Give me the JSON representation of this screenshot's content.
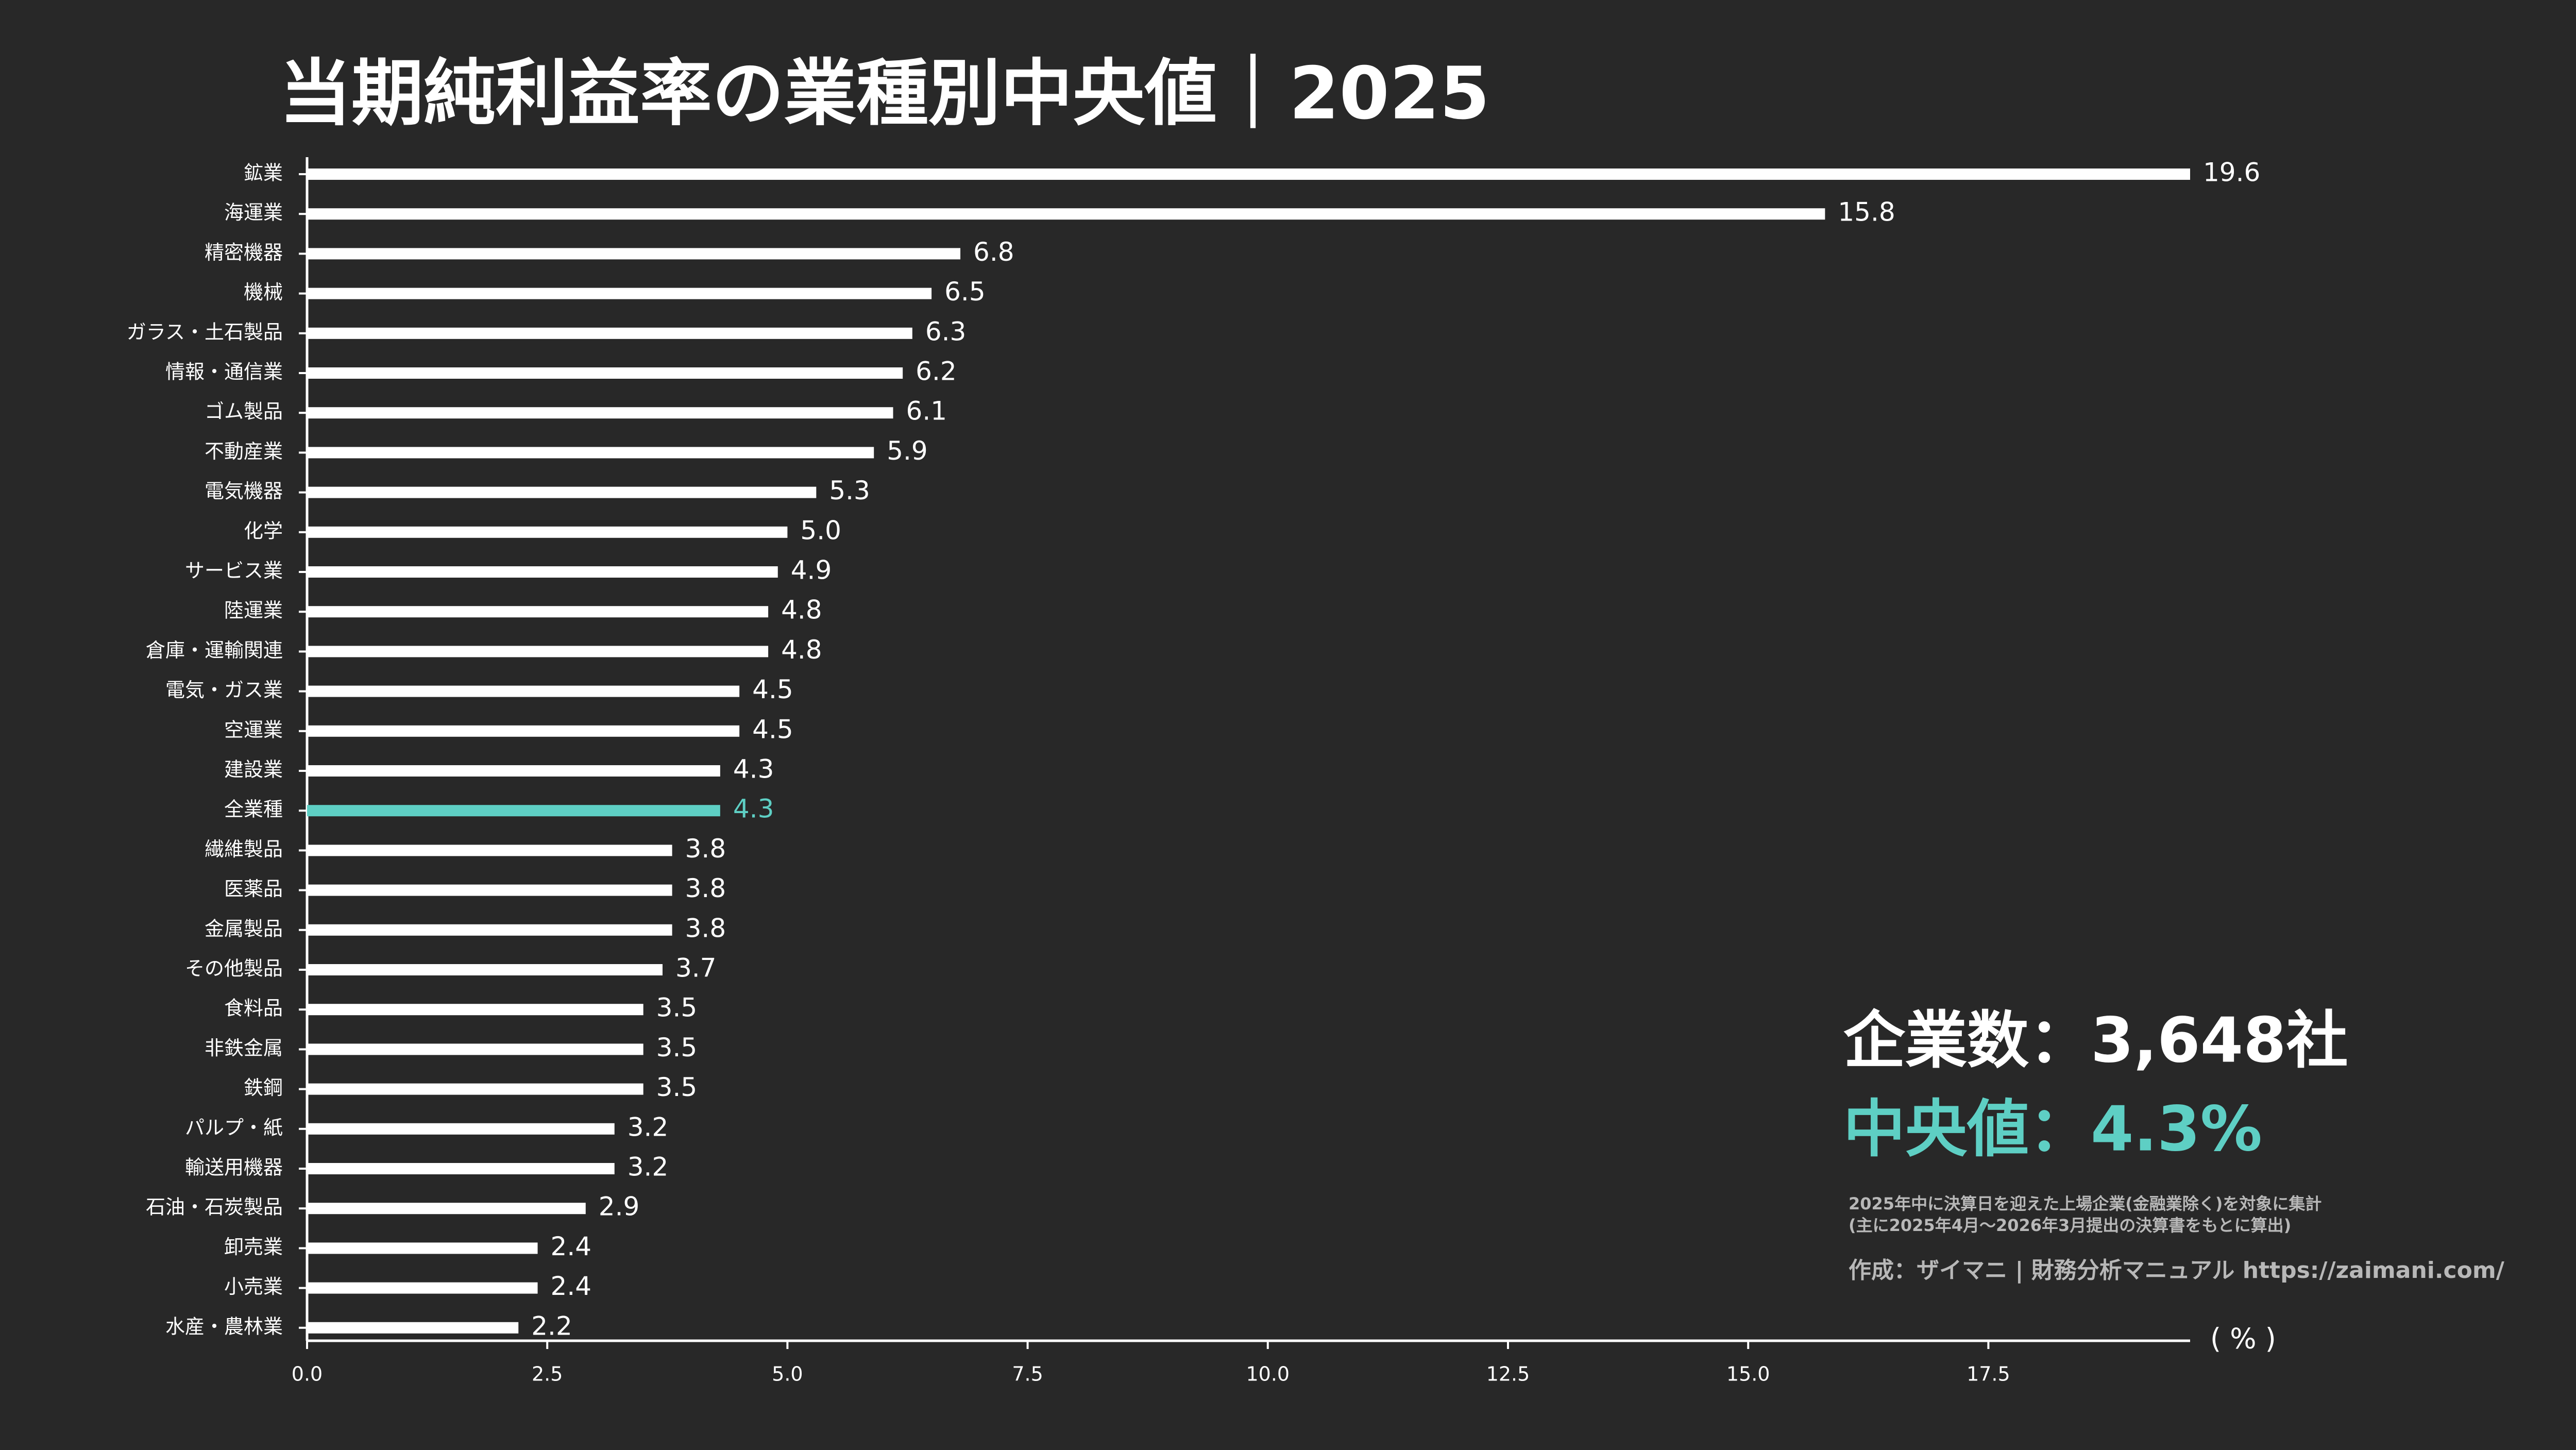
{
  "chart_data": {
    "type": "bar",
    "orientation": "horizontal",
    "title": "当期純利益率の業種別中央値｜2025",
    "categories": [
      "鉱業",
      "海運業",
      "精密機器",
      "機械",
      "ガラス・土石製品",
      "情報・通信業",
      "ゴム製品",
      "不動産業",
      "電気機器",
      "化学",
      "サービス業",
      "陸運業",
      "倉庫・運輸関連",
      "電気・ガス業",
      "空運業",
      "建設業",
      "全業種",
      "繊維製品",
      "医薬品",
      "金属製品",
      "その他製品",
      "食料品",
      "非鉄金属",
      "鉄鋼",
      "パルプ・紙",
      "輸送用機器",
      "石油・石炭製品",
      "卸売業",
      "小売業",
      "水産・農林業"
    ],
    "values": [
      19.6,
      15.8,
      6.8,
      6.5,
      6.3,
      6.2,
      6.1,
      5.9,
      5.3,
      5.0,
      4.9,
      4.8,
      4.8,
      4.5,
      4.5,
      4.3,
      4.3,
      3.8,
      3.8,
      3.8,
      3.7,
      3.5,
      3.5,
      3.5,
      3.2,
      3.2,
      2.9,
      2.4,
      2.4,
      2.2
    ],
    "value_labels": [
      "19.6",
      "15.8",
      "6.8",
      "6.5",
      "6.3",
      "6.2",
      "6.1",
      "5.9",
      "5.3",
      "5.0",
      "4.9",
      "4.8",
      "4.8",
      "4.5",
      "4.5",
      "4.3",
      "4.3",
      "3.8",
      "3.8",
      "3.8",
      "3.7",
      "3.5",
      "3.5",
      "3.5",
      "3.2",
      "3.2",
      "2.9",
      "2.4",
      "2.4",
      "2.2"
    ],
    "colors": [
      "#ffffff",
      "#ffffff",
      "#ffffff",
      "#ffffff",
      "#ffffff",
      "#ffffff",
      "#ffffff",
      "#ffffff",
      "#ffffff",
      "#ffffff",
      "#ffffff",
      "#ffffff",
      "#ffffff",
      "#ffffff",
      "#ffffff",
      "#ffffff",
      "#5ecfc4",
      "#ffffff",
      "#ffffff",
      "#ffffff",
      "#ffffff",
      "#ffffff",
      "#ffffff",
      "#ffffff",
      "#ffffff",
      "#ffffff",
      "#ffffff",
      "#ffffff",
      "#ffffff",
      "#ffffff"
    ],
    "xlim": [
      0,
      19.6
    ],
    "xticks": [
      {
        "value": 0,
        "label": "0.0"
      },
      2.5,
      {
        "value": 5,
        "label": "5.0"
      },
      7.5,
      {
        "value": 10,
        "label": "10.0"
      },
      12.5,
      {
        "value": 15,
        "label": "15.0"
      },
      17.5
    ],
    "x_label": "( % )",
    "grid": false,
    "annotations": [
      "企業数：3,648社",
      "中央値：4.3%",
      "2025年中に決算日を迎えた上場企業(金融業除く)を対象に集計",
      "(主に2025年4月〜2026年3月提出の決算書をもとに算出)",
      "作成：ザイマニ | 財務分析マニュアル https://zaimani.com/"
    ]
  }
}
